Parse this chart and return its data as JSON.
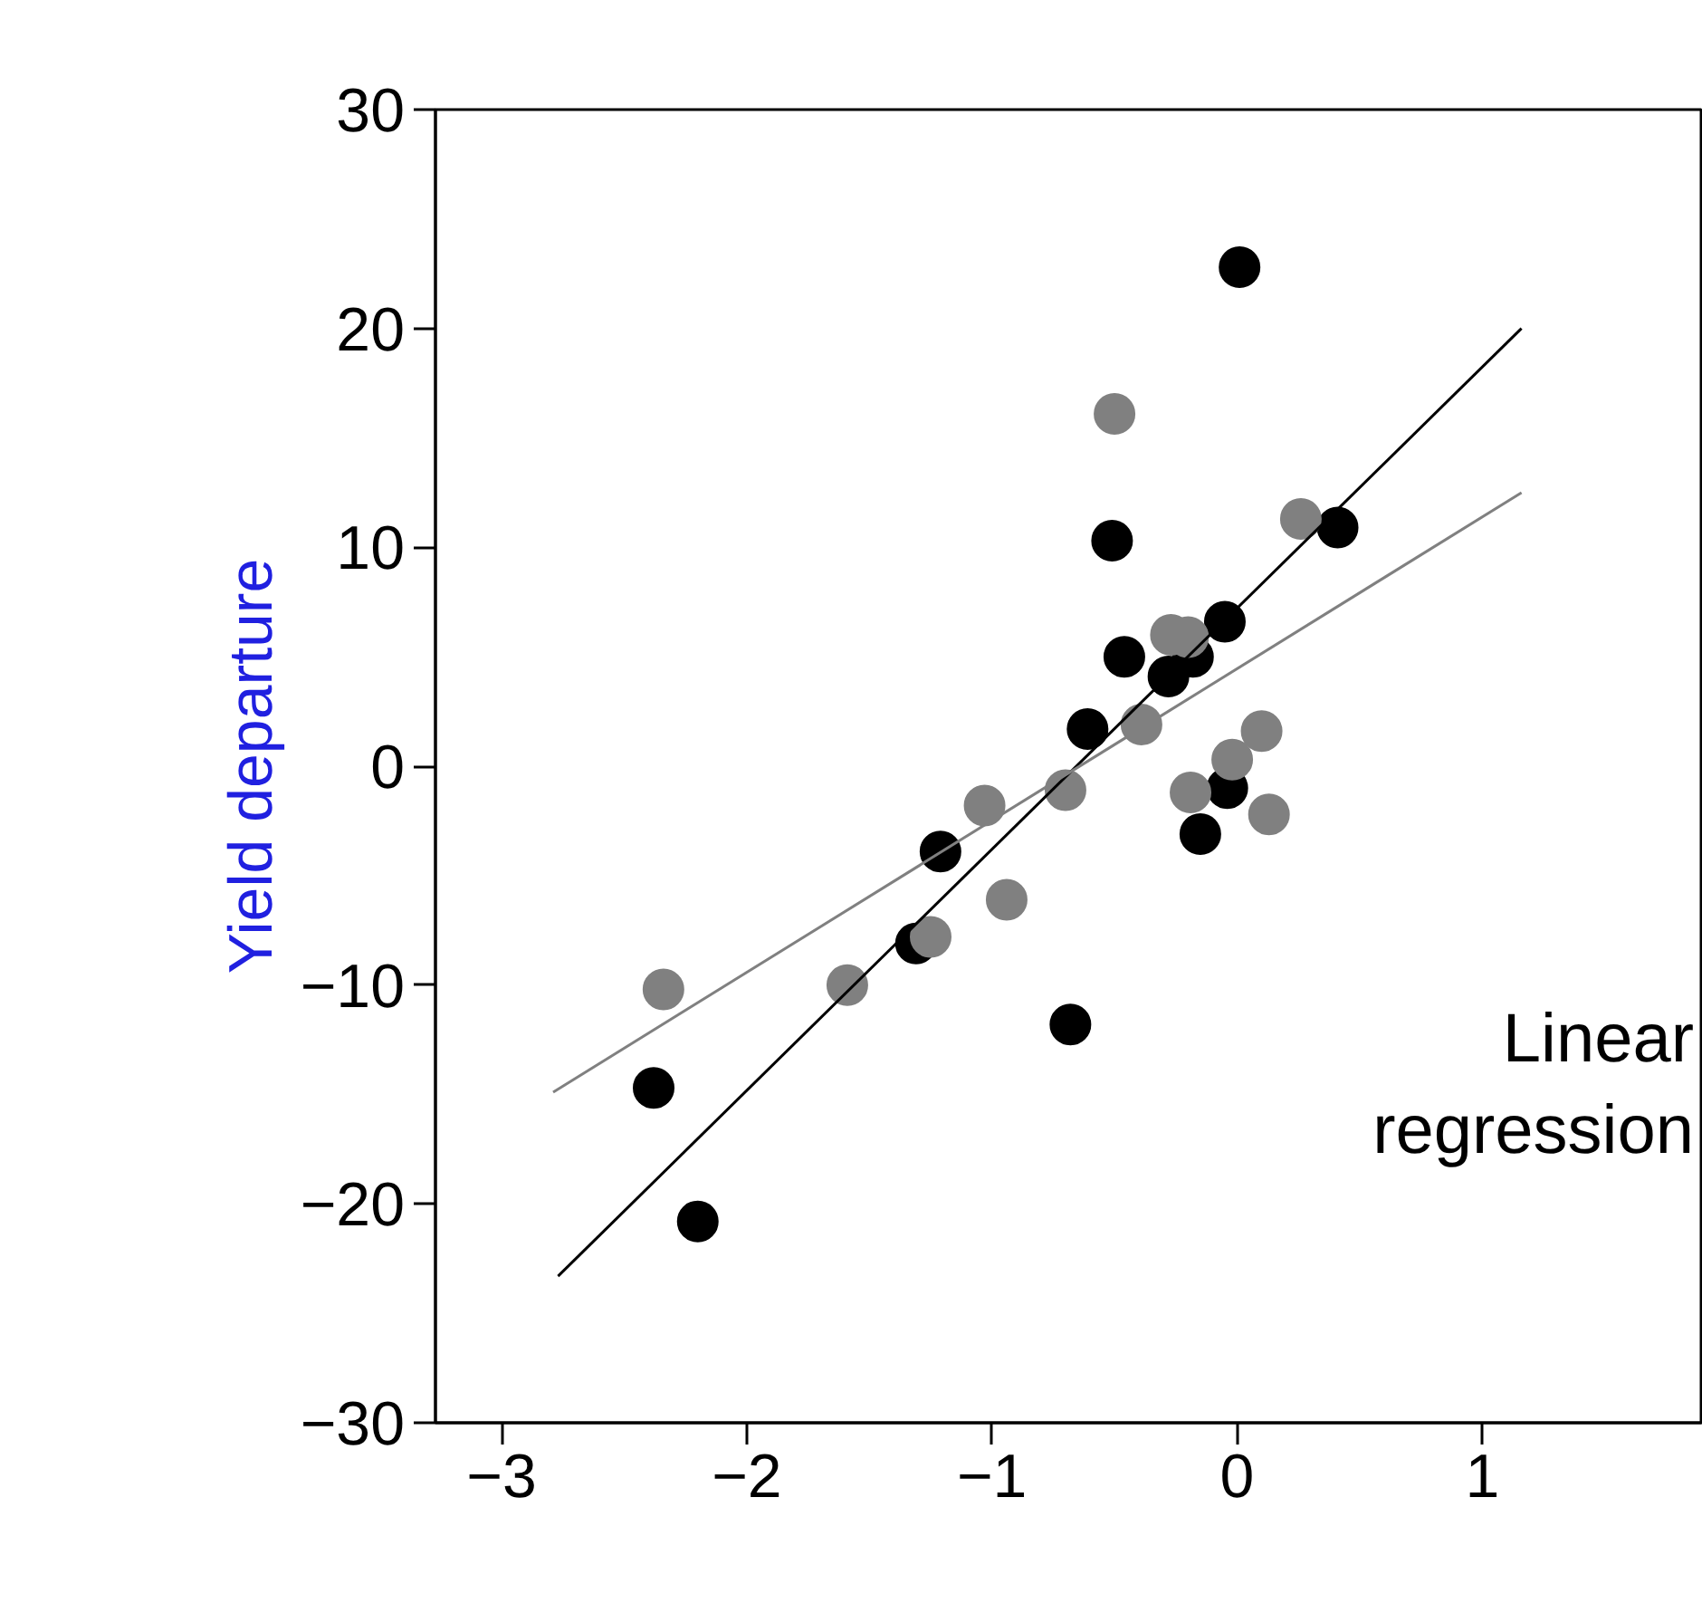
{
  "chart_data": {
    "type": "scatter",
    "ylabel": "Yield departure",
    "annotations": [
      "Linear\nregression"
    ],
    "xlim": [
      -3.27,
      1.9
    ],
    "ylim": [
      -30,
      30
    ],
    "xticks": [
      -3,
      -2,
      -1,
      0,
      1
    ],
    "yticks": [
      -30,
      -20,
      -10,
      0,
      10,
      20,
      30
    ],
    "grid": false,
    "series": [
      {
        "marker": "circle",
        "color": "#000000",
        "x": [
          0.01,
          -0.51,
          0.41,
          -0.05,
          -0.46,
          -0.18,
          -0.28,
          -0.61,
          -0.04,
          -0.15,
          -1.21,
          -1.31,
          -0.68,
          -2.38,
          -2.2
        ],
        "values": [
          22.8,
          10.3,
          10.9,
          6.6,
          5.0,
          5.0,
          4.1,
          1.7,
          -1.0,
          -3.1,
          -3.9,
          -8.1,
          -11.8,
          -14.7,
          -20.8
        ]
      },
      {
        "marker": "circle",
        "color": "#808080",
        "x": [
          -0.5,
          0.26,
          -0.27,
          -0.2,
          -0.39,
          -1.03,
          -0.7,
          0.1,
          -0.02,
          -0.19,
          0.13,
          -0.94,
          -1.25,
          -1.59,
          -2.34
        ],
        "values": [
          16.1,
          11.3,
          6.0,
          5.9,
          1.9,
          -1.8,
          -1.1,
          1.6,
          0.3,
          -1.2,
          -2.2,
          -6.1,
          -7.8,
          -10.0,
          -10.2
        ]
      },
      {
        "type": "line",
        "color": "#000000",
        "x": [
          -2.77,
          1.16
        ],
        "values": [
          -23.3,
          20.0
        ]
      },
      {
        "type": "line",
        "color": "#808080",
        "x": [
          -2.79,
          1.16
        ],
        "values": [
          -14.9,
          12.5
        ]
      }
    ]
  }
}
